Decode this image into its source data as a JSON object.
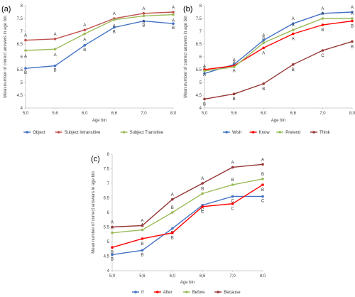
{
  "chart_data": [
    {
      "type": "line",
      "panel_label": "(a)",
      "xlabel": "Age bin",
      "ylabel": "Mean number of correct answers in age bin",
      "categories": [
        "5;0",
        "5;6",
        "6;0",
        "6;6",
        "7;0",
        "8;0"
      ],
      "ylim": [
        4,
        8
      ],
      "yticks": [
        "4",
        "4.5",
        "5",
        "5.5",
        "6",
        "6.5",
        "7",
        "7.5",
        "8"
      ],
      "grid": false,
      "legend_position": "bottom",
      "series": [
        {
          "name": "Object",
          "color": "#4472C4",
          "values": [
            5.55,
            5.65,
            6.45,
            7.15,
            7.4,
            7.3
          ],
          "labels": [
            "B",
            "B",
            "B",
            "B",
            "B",
            "B"
          ]
        },
        {
          "name": "Subject Intransitive",
          "color": "#C0504D",
          "values": [
            6.65,
            6.7,
            7.05,
            7.5,
            7.7,
            7.75
          ],
          "labels": [
            "A",
            "A",
            "A",
            "A",
            "A",
            "A"
          ]
        },
        {
          "name": "Subject Transitive",
          "color": "#9BBB59",
          "values": [
            6.25,
            6.3,
            6.9,
            7.45,
            7.6,
            7.65
          ],
          "labels": [
            "A",
            "A",
            "A",
            "A",
            "A",
            "A"
          ]
        }
      ]
    },
    {
      "type": "line",
      "panel_label": "(b)",
      "xlabel": "Age bin",
      "ylabel": "Mean number of correct answers in age bin",
      "categories": [
        "5;0",
        "5;6",
        "6;0",
        "6;6",
        "7;0",
        "8;0"
      ],
      "ylim": [
        4,
        8
      ],
      "yticks": [
        "4",
        "4.5",
        "5",
        "5.5",
        "6",
        "6.5",
        "7",
        "7.5",
        "8"
      ],
      "grid": false,
      "legend_position": "bottom",
      "series": [
        {
          "name": "Wish",
          "color": "#4472C4",
          "values": [
            5.35,
            5.7,
            6.65,
            7.3,
            7.7,
            7.75
          ],
          "labels": [
            "A",
            "A",
            "A",
            "A",
            "A",
            "A"
          ]
        },
        {
          "name": "Know",
          "color": "#FF0000",
          "values": [
            5.5,
            5.65,
            6.35,
            6.9,
            7.25,
            7.4
          ],
          "labels": [
            "A",
            "A",
            "A",
            "A",
            "B",
            "B"
          ]
        },
        {
          "name": "Pretend",
          "color": "#9BBB59",
          "values": [
            5.45,
            5.6,
            6.55,
            7.05,
            7.5,
            7.5
          ],
          "labels": [
            "A",
            "A",
            "A",
            "A",
            "A",
            "A"
          ]
        },
        {
          "name": "Think",
          "color": "#953735",
          "values": [
            4.35,
            4.55,
            4.95,
            5.7,
            6.25,
            6.6
          ],
          "labels": [
            "B",
            "B",
            "B",
            "B",
            "C",
            "B"
          ]
        }
      ]
    },
    {
      "type": "line",
      "panel_label": "(c)",
      "xlabel": "Age bin",
      "ylabel": "Mean number of correct answers in age bin",
      "categories": [
        "5;0",
        "5;6",
        "6;0",
        "6;6",
        "7;0",
        "8;0"
      ],
      "ylim": [
        4,
        8
      ],
      "yticks": [
        "4",
        "4.5",
        "5",
        "5.5",
        "6",
        "6.5",
        "7",
        "7.5",
        "8"
      ],
      "grid": false,
      "legend_position": "bottom",
      "series": [
        {
          "name": "If",
          "color": "#4472C4",
          "values": [
            4.55,
            4.7,
            5.45,
            6.25,
            6.55,
            6.55
          ],
          "labels": [
            "B",
            "B",
            "B",
            "C",
            "C",
            "C"
          ]
        },
        {
          "name": "After",
          "color": "#FF0000",
          "values": [
            4.8,
            5.1,
            5.3,
            6.2,
            6.3,
            6.95
          ],
          "labels": [
            "B",
            "B",
            "B",
            "C",
            "C",
            "B"
          ]
        },
        {
          "name": "Before",
          "color": "#9BBB59",
          "values": [
            5.3,
            5.4,
            6.0,
            6.65,
            6.95,
            7.15
          ],
          "labels": [
            "A",
            "A",
            "B",
            "B",
            "B",
            "B"
          ]
        },
        {
          "name": "Because",
          "color": "#953735",
          "values": [
            5.5,
            5.55,
            6.45,
            7.0,
            7.55,
            7.65
          ],
          "labels": [
            "A",
            "A",
            "A",
            "A",
            "A",
            "A"
          ]
        }
      ]
    }
  ]
}
